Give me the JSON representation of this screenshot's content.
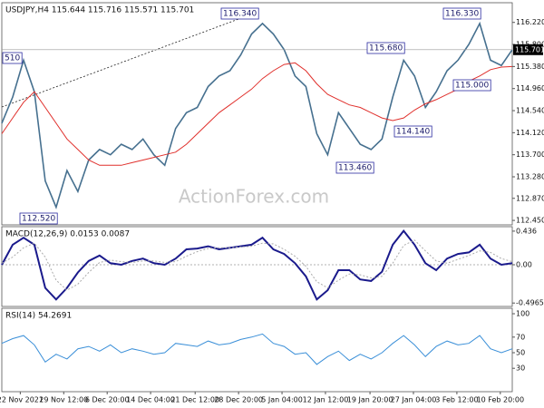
{
  "chart_data": [
    {
      "type": "line",
      "title": "USDJPY,H4  115.644 115.716 115.571 115.701",
      "watermark": "ActionForex.com",
      "x": [
        0,
        1,
        2,
        3,
        4,
        5,
        6,
        7,
        8,
        9,
        10,
        11,
        12,
        13,
        14,
        15,
        16,
        17,
        18,
        19,
        20,
        21,
        22,
        23,
        24,
        25,
        26,
        27,
        28,
        29,
        30,
        31,
        32,
        33,
        34,
        35,
        36,
        37,
        38,
        39,
        40,
        41,
        42,
        43,
        44,
        45,
        46,
        47
      ],
      "xlim": [
        0,
        47
      ],
      "xticks": [
        {
          "value": 1.7,
          "label": "22 Nov 2021"
        },
        {
          "value": 5.7,
          "label": "29 Nov 12:00"
        },
        {
          "value": 9.7,
          "label": "6 Dec 20:00"
        },
        {
          "value": 13.7,
          "label": "14 Dec 04:00"
        },
        {
          "value": 17.8,
          "label": "21 Dec 12:00"
        },
        {
          "value": 21.8,
          "label": "28 Dec 20:00"
        },
        {
          "value": 25.8,
          "label": "5 Jan 04:00"
        },
        {
          "value": 29.8,
          "label": "12 Jan 12:00"
        },
        {
          "value": 33.9,
          "label": "19 Jan 20:00"
        },
        {
          "value": 37.9,
          "label": "27 Jan 04:00"
        },
        {
          "value": 41.9,
          "label": "3 Feb 12:00"
        },
        {
          "value": 45.9,
          "label": "10 Feb 20:00"
        }
      ],
      "ylim": [
        112.365,
        116.595
      ],
      "yticks": [
        {
          "value": 116.22,
          "label": "116.220"
        },
        {
          "value": 115.8,
          "label": "115.800"
        },
        {
          "value": 115.38,
          "label": "115.380"
        },
        {
          "value": 114.96,
          "label": "114.960"
        },
        {
          "value": 114.54,
          "label": "114.540"
        },
        {
          "value": 114.12,
          "label": "114.120"
        },
        {
          "value": 113.7,
          "label": "113.700"
        },
        {
          "value": 113.28,
          "label": "113.280"
        },
        {
          "value": 112.87,
          "label": "112.870"
        },
        {
          "value": 112.45,
          "label": "112.450"
        }
      ],
      "last_price": 115.701,
      "annotations": [
        "510",
        "116.340",
        "116.330",
        "115.680",
        "115.000",
        "114.140",
        "113.460",
        "112.520"
      ],
      "series": [
        {
          "name": "USDJPY",
          "color": "#46708f",
          "values": [
            114.3,
            114.8,
            115.5,
            114.9,
            113.2,
            112.7,
            113.4,
            113.0,
            113.6,
            113.8,
            113.7,
            113.9,
            113.8,
            114.0,
            113.7,
            113.5,
            114.2,
            114.5,
            114.6,
            115.0,
            115.2,
            115.3,
            115.6,
            116.0,
            116.2,
            116.0,
            115.7,
            115.2,
            115.0,
            114.1,
            113.7,
            114.5,
            114.2,
            113.9,
            113.8,
            114.0,
            114.8,
            115.5,
            115.2,
            114.6,
            114.9,
            115.3,
            115.5,
            115.8,
            116.2,
            115.5,
            115.4,
            115.7
          ]
        },
        {
          "name": "MA",
          "color": "#e0302c",
          "values": [
            114.1,
            114.4,
            114.7,
            114.9,
            114.6,
            114.3,
            114.0,
            113.8,
            113.6,
            113.5,
            113.5,
            113.5,
            113.55,
            113.6,
            113.65,
            113.7,
            113.75,
            113.9,
            114.1,
            114.3,
            114.5,
            114.65,
            114.8,
            114.95,
            115.15,
            115.3,
            115.42,
            115.45,
            115.3,
            115.05,
            114.85,
            114.75,
            114.65,
            114.6,
            114.5,
            114.4,
            114.35,
            114.4,
            114.55,
            114.67,
            114.75,
            114.85,
            114.95,
            115.1,
            115.2,
            115.32,
            115.37,
            115.38
          ]
        }
      ]
    },
    {
      "type": "line",
      "title": "MACD(12,26,9) 0.0153 0.0087",
      "ylim": [
        -0.541,
        0.494
      ],
      "yticks": [
        0.436,
        {
          "value": 0,
          "label": "0.00"
        },
        -0.4965
      ],
      "zero_line": true,
      "series": [
        {
          "name": "MACD",
          "color": "#1a1a8c",
          "values": [
            0,
            0.26,
            0.35,
            0.26,
            -0.3,
            -0.45,
            -0.3,
            -0.1,
            0.05,
            0.12,
            0.02,
            0,
            0.05,
            0.08,
            0.02,
            0,
            0.08,
            0.2,
            0.21,
            0.24,
            0.2,
            0.22,
            0.24,
            0.26,
            0.35,
            0.2,
            0.14,
            0.02,
            -0.15,
            -0.45,
            -0.33,
            -0.07,
            -0.07,
            -0.19,
            -0.21,
            -0.09,
            0.26,
            0.44,
            0.26,
            0.02,
            -0.07,
            0.08,
            0.14,
            0.16,
            0.26,
            0.08,
            0,
            0.02
          ]
        },
        {
          "name": "Signal",
          "color": "#aaaaaa",
          "values": [
            0.02,
            0.1,
            0.22,
            0.28,
            0.1,
            -0.2,
            -0.33,
            -0.25,
            -0.1,
            0.03,
            0.06,
            0.04,
            0.03,
            0.05,
            0.05,
            0.03,
            0.04,
            0.11,
            0.17,
            0.21,
            0.22,
            0.22,
            0.23,
            0.24,
            0.28,
            0.27,
            0.2,
            0.11,
            -0.02,
            -0.22,
            -0.3,
            -0.2,
            -0.12,
            -0.13,
            -0.17,
            -0.15,
            0.02,
            0.25,
            0.32,
            0.18,
            0.05,
            0.02,
            0.07,
            0.12,
            0.18,
            0.16,
            0.08,
            0.04
          ]
        }
      ]
    },
    {
      "type": "line",
      "title": "RSI(14) 54.2691",
      "ylim": [
        0,
        107
      ],
      "yticks": [
        100,
        70,
        50,
        30
      ],
      "series": [
        {
          "name": "RSI",
          "color": "#3a8fd8",
          "values": [
            62,
            68,
            72,
            60,
            38,
            48,
            42,
            55,
            58,
            52,
            60,
            50,
            55,
            52,
            48,
            50,
            62,
            60,
            58,
            65,
            60,
            62,
            67,
            70,
            74,
            62,
            58,
            48,
            50,
            35,
            45,
            52,
            40,
            48,
            42,
            50,
            62,
            72,
            60,
            45,
            58,
            65,
            60,
            62,
            72,
            55,
            50,
            55
          ]
        }
      ]
    }
  ]
}
